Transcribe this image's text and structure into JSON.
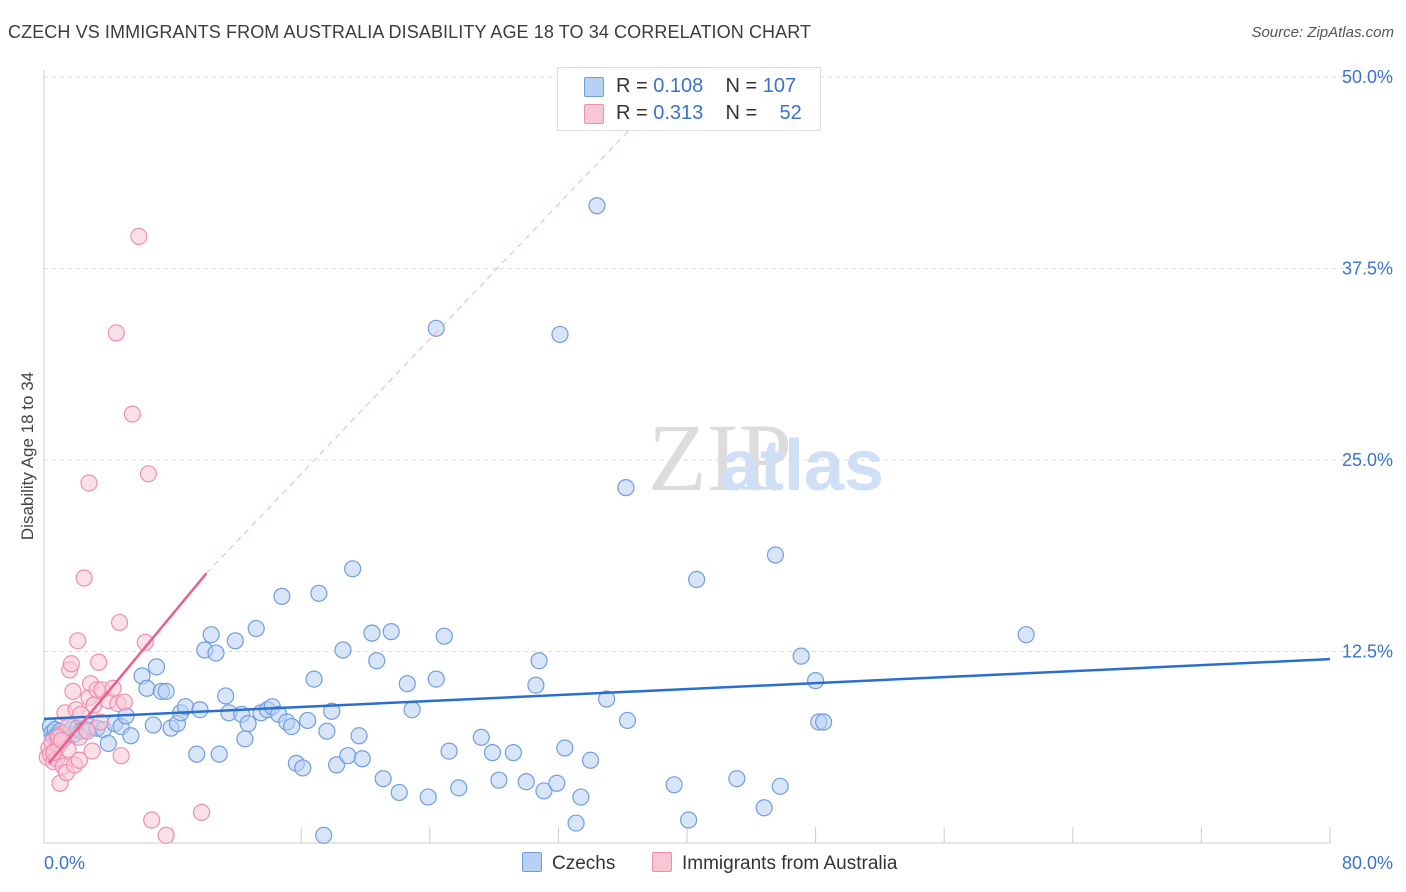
{
  "title": "CZECH VS IMMIGRANTS FROM AUSTRALIA DISABILITY AGE 18 TO 34 CORRELATION CHART",
  "source": "Source: ZipAtlas.com",
  "watermark": {
    "zip": "ZIP",
    "atlas": "atlas"
  },
  "colors": {
    "blue_fill": "#b8d0f3",
    "blue_stroke": "#6f9ee0",
    "blue_line": "#2a6fcf",
    "pink_fill": "#f9c6d6",
    "pink_stroke": "#ef8fb0",
    "pink_line": "#e8608f",
    "axis_label": "#3a72cf",
    "grid": "#dddddd"
  },
  "stats": {
    "row1": {
      "r_label": "R = ",
      "r_value": "0.108",
      "n_label": "N = ",
      "n_value": "107"
    },
    "row2": {
      "r_label": "R = ",
      "r_value": "0.313",
      "n_label": "N = ",
      "n_value": "52"
    }
  },
  "legend": {
    "czechs": "Czechs",
    "immigrants": "Immigrants from Australia"
  },
  "chart_data": {
    "type": "scatter",
    "title": "CZECH VS IMMIGRANTS FROM AUSTRALIA DISABILITY AGE 18 TO 34 CORRELATION CHART",
    "xlabel": "",
    "ylabel": "Disability Age 18 to 34",
    "xlim": [
      0,
      80
    ],
    "ylim": [
      0,
      52
    ],
    "x_ticks": [
      0,
      80
    ],
    "x_tick_labels": [
      "0.0%",
      "80.0%"
    ],
    "y_ticks": [
      12.5,
      25,
      37.5,
      50
    ],
    "y_tick_labels": [
      "12.5%",
      "25.0%",
      "37.5%",
      "50.0%"
    ],
    "grid": true,
    "legend_position": "bottom",
    "series": [
      {
        "name": "Czechs",
        "color": "#6f9ee0",
        "trend": {
          "x": [
            0,
            80
          ],
          "y": [
            8.1,
            12.0
          ]
        },
        "points": [
          [
            0.4,
            7.6
          ],
          [
            0.5,
            7.2
          ],
          [
            0.6,
            6.9
          ],
          [
            0.7,
            7.4
          ],
          [
            0.8,
            7.0
          ],
          [
            0.9,
            6.8
          ],
          [
            1.0,
            7.3
          ],
          [
            1.1,
            7.1
          ],
          [
            1.3,
            7.2
          ],
          [
            1.5,
            7.0
          ],
          [
            1.7,
            7.4
          ],
          [
            1.9,
            7.1
          ],
          [
            2.1,
            7.5
          ],
          [
            2.3,
            7.3
          ],
          [
            2.6,
            7.4
          ],
          [
            2.9,
            7.6
          ],
          [
            3.3,
            7.5
          ],
          [
            3.7,
            7.4
          ],
          [
            4.0,
            6.5
          ],
          [
            4.4,
            7.8
          ],
          [
            4.8,
            7.6
          ],
          [
            5.1,
            8.3
          ],
          [
            5.4,
            7.0
          ],
          [
            6.1,
            10.9
          ],
          [
            6.4,
            10.1
          ],
          [
            6.8,
            7.7
          ],
          [
            7.0,
            11.5
          ],
          [
            7.3,
            9.9
          ],
          [
            7.6,
            9.9
          ],
          [
            7.9,
            7.5
          ],
          [
            8.3,
            7.8
          ],
          [
            8.5,
            8.5
          ],
          [
            8.8,
            8.9
          ],
          [
            9.5,
            5.8
          ],
          [
            9.7,
            8.7
          ],
          [
            10.0,
            12.6
          ],
          [
            10.4,
            13.6
          ],
          [
            10.7,
            12.4
          ],
          [
            10.9,
            5.8
          ],
          [
            11.3,
            9.6
          ],
          [
            11.5,
            8.5
          ],
          [
            11.9,
            13.2
          ],
          [
            12.3,
            8.4
          ],
          [
            12.5,
            6.8
          ],
          [
            12.7,
            7.8
          ],
          [
            13.2,
            14.0
          ],
          [
            13.5,
            8.5
          ],
          [
            13.9,
            8.7
          ],
          [
            14.2,
            8.9
          ],
          [
            14.6,
            8.4
          ],
          [
            14.8,
            16.1
          ],
          [
            15.1,
            7.9
          ],
          [
            15.4,
            7.6
          ],
          [
            15.7,
            5.2
          ],
          [
            16.1,
            4.9
          ],
          [
            16.4,
            8.0
          ],
          [
            16.8,
            10.7
          ],
          [
            17.1,
            16.3
          ],
          [
            17.4,
            0.5
          ],
          [
            17.6,
            7.3
          ],
          [
            17.9,
            8.6
          ],
          [
            18.2,
            5.1
          ],
          [
            18.6,
            12.6
          ],
          [
            18.9,
            5.7
          ],
          [
            19.2,
            17.9
          ],
          [
            19.6,
            7.0
          ],
          [
            19.8,
            5.5
          ],
          [
            20.4,
            13.7
          ],
          [
            20.7,
            11.9
          ],
          [
            21.1,
            4.2
          ],
          [
            21.6,
            13.8
          ],
          [
            22.1,
            3.3
          ],
          [
            22.6,
            10.4
          ],
          [
            22.9,
            8.7
          ],
          [
            23.9,
            3.0
          ],
          [
            24.4,
            10.7
          ],
          [
            24.9,
            13.5
          ],
          [
            25.2,
            6.0
          ],
          [
            25.8,
            3.6
          ],
          [
            27.2,
            6.9
          ],
          [
            27.9,
            5.9
          ],
          [
            28.3,
            4.1
          ],
          [
            29.2,
            5.9
          ],
          [
            30.0,
            4.0
          ],
          [
            30.6,
            10.3
          ],
          [
            30.8,
            11.9
          ],
          [
            31.1,
            3.4
          ],
          [
            31.9,
            3.9
          ],
          [
            32.4,
            6.2
          ],
          [
            33.1,
            1.3
          ],
          [
            33.4,
            3.0
          ],
          [
            34.0,
            5.4
          ],
          [
            35.0,
            9.4
          ],
          [
            36.3,
            8.0
          ],
          [
            39.2,
            3.8
          ],
          [
            40.1,
            1.5
          ],
          [
            40.6,
            17.2
          ],
          [
            43.1,
            4.2
          ],
          [
            44.8,
            2.3
          ],
          [
            45.5,
            18.8
          ],
          [
            45.8,
            3.7
          ],
          [
            47.1,
            12.2
          ],
          [
            48.0,
            10.6
          ],
          [
            48.2,
            7.9
          ],
          [
            48.5,
            7.9
          ],
          [
            61.1,
            13.6
          ],
          [
            34.4,
            41.6
          ],
          [
            24.4,
            33.6
          ],
          [
            32.1,
            33.2
          ],
          [
            36.2,
            23.2
          ]
        ]
      },
      {
        "name": "Immigrants from Australia",
        "color": "#ef8fb0",
        "trend": {
          "x": [
            0.3,
            10.1
          ],
          "y": [
            5.2,
            17.6
          ]
        },
        "trend_dashed": {
          "x": [
            10.1,
            37.0
          ],
          "y": [
            17.6,
            47.2
          ]
        },
        "points": [
          [
            0.2,
            5.6
          ],
          [
            0.3,
            6.2
          ],
          [
            0.4,
            5.8
          ],
          [
            0.5,
            6.6
          ],
          [
            0.6,
            5.3
          ],
          [
            0.7,
            6.0
          ],
          [
            0.8,
            5.5
          ],
          [
            0.9,
            6.4
          ],
          [
            1.0,
            3.9
          ],
          [
            1.1,
            7.1
          ],
          [
            1.2,
            5.0
          ],
          [
            1.3,
            8.5
          ],
          [
            1.4,
            4.6
          ],
          [
            1.5,
            6.1
          ],
          [
            1.6,
            11.3
          ],
          [
            1.7,
            11.7
          ],
          [
            1.8,
            9.9
          ],
          [
            1.9,
            5.1
          ],
          [
            2.0,
            8.7
          ],
          [
            2.1,
            13.2
          ],
          [
            2.2,
            6.9
          ],
          [
            2.3,
            8.4
          ],
          [
            2.5,
            17.3
          ],
          [
            2.7,
            7.3
          ],
          [
            2.8,
            9.5
          ],
          [
            2.9,
            10.4
          ],
          [
            3.0,
            6.0
          ],
          [
            3.1,
            9.0
          ],
          [
            3.3,
            10.0
          ],
          [
            3.4,
            11.8
          ],
          [
            3.5,
            7.9
          ],
          [
            3.6,
            10.0
          ],
          [
            4.0,
            9.3
          ],
          [
            4.3,
            10.1
          ],
          [
            4.5,
            33.3
          ],
          [
            4.6,
            9.1
          ],
          [
            4.7,
            14.4
          ],
          [
            4.8,
            5.7
          ],
          [
            5.0,
            9.2
          ],
          [
            5.5,
            28.0
          ],
          [
            5.9,
            39.6
          ],
          [
            6.3,
            13.1
          ],
          [
            6.5,
            24.1
          ],
          [
            6.7,
            1.5
          ],
          [
            7.6,
            0.5
          ],
          [
            9.8,
            2.0
          ],
          [
            2.8,
            23.5
          ],
          [
            1.5,
            7.6
          ],
          [
            0.9,
            6.9
          ],
          [
            2.2,
            5.4
          ],
          [
            0.6,
            5.9
          ],
          [
            1.1,
            6.7
          ]
        ]
      }
    ]
  }
}
